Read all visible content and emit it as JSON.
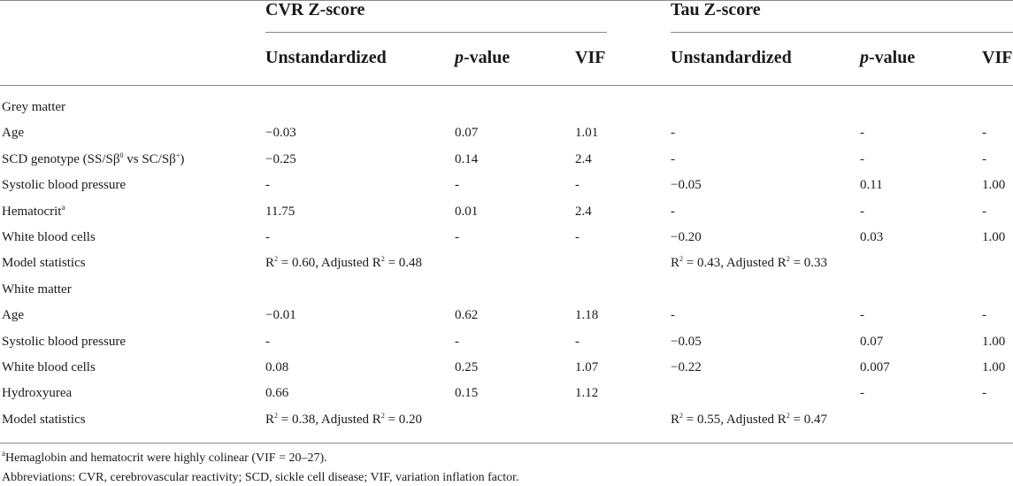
{
  "table": {
    "group_headers": [
      "CVR Z-score",
      "Tau Z-score"
    ],
    "col_headers": [
      {
        "text": "Unstandardized"
      },
      {
        "italic": "p",
        "rest": "-value"
      },
      {
        "text": "VIF"
      },
      {
        "text": "Unstandardized"
      },
      {
        "italic": "p",
        "rest": "-value"
      },
      {
        "text": "VIF"
      }
    ],
    "rows": [
      {
        "type": "section",
        "label": "Grey matter"
      },
      {
        "label": "Age",
        "cells": [
          "−0.03",
          "0.07",
          "1.01",
          "-",
          "-",
          "-"
        ]
      },
      {
        "label_parts": [
          "SCD genotype (SS/Sβ",
          "0",
          " vs SC/Sβ",
          "+",
          ")"
        ],
        "cells": [
          "−0.25",
          "0.14",
          "2.4",
          "-",
          "-",
          "-"
        ]
      },
      {
        "label": "Systolic blood pressure",
        "cells": [
          "-",
          "-",
          "-",
          "−0.05",
          "0.11",
          "1.00"
        ]
      },
      {
        "label": "Hematocrit",
        "label_sup": "a",
        "cells": [
          "11.75",
          "0.01",
          "2.4",
          "-",
          "-",
          "-"
        ]
      },
      {
        "label": "White blood cells",
        "cells": [
          "-",
          "-",
          "-",
          "−0.20",
          "0.03",
          "1.00"
        ]
      },
      {
        "label": "Model statistics",
        "model": [
          [
            "R",
            "2",
            " = 0.60, Adjusted R",
            "2",
            " = 0.48"
          ],
          [
            "R",
            "2",
            " = 0.43, Adjusted R",
            "2",
            " = 0.33"
          ]
        ]
      },
      {
        "type": "section",
        "label": "White matter"
      },
      {
        "label": "Age",
        "cells": [
          "−0.01",
          "0.62",
          "1.18",
          "-",
          "-",
          "-"
        ]
      },
      {
        "label": "Systolic blood pressure",
        "cells": [
          "-",
          "-",
          "-",
          "−0.05",
          "0.07",
          "1.00"
        ]
      },
      {
        "label": "White blood cells",
        "cells": [
          "0.08",
          "0.25",
          "1.07",
          "−0.22",
          "0.007",
          "1.00"
        ]
      },
      {
        "label": "Hydroxyurea",
        "cells": [
          "0.66",
          "0.15",
          "1.12",
          "",
          "-",
          "-"
        ]
      },
      {
        "label": "Model statistics",
        "model": [
          [
            "R",
            "2",
            " = 0.38, Adjusted R",
            "2",
            " = 0.20"
          ],
          [
            "R",
            "2",
            " = 0.55, Adjusted R",
            "2",
            " = 0.47"
          ]
        ]
      }
    ]
  },
  "footnotes": [
    {
      "sup": "a",
      "text": "Hemaglobin and hematocrit were highly colinear (VIF = 20–27)."
    },
    {
      "text": "Abbreviations: CVR, cerebrovascular reactivity; SCD, sickle cell disease; VIF, variation inflation factor."
    }
  ]
}
